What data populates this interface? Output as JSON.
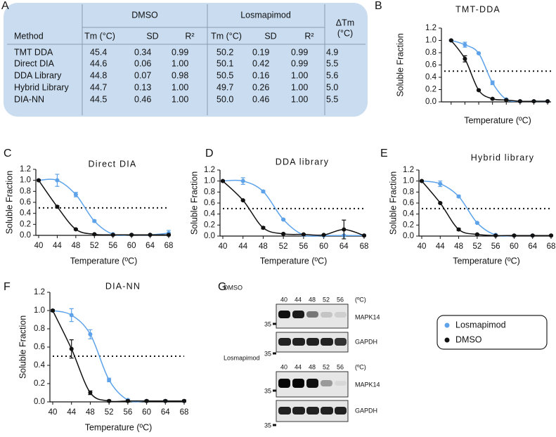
{
  "panel_labels": [
    "A",
    "B",
    "C",
    "D",
    "E",
    "F",
    "G"
  ],
  "table": {
    "method_header": "Method",
    "groups": [
      "DMSO",
      "Losmapimod"
    ],
    "delta_header": "ΔTm",
    "delta_unit": "(°C)",
    "subheaders": [
      "Tm (°C)",
      "SD",
      "R²",
      "Tm (°C)",
      "SD",
      "R²"
    ],
    "rows": [
      [
        "TMT DDA",
        "45.4",
        "0.34",
        "0.99",
        "50.2",
        "0.19",
        "0.99",
        "4.9"
      ],
      [
        "Direct DIA",
        "44.6",
        "0.06",
        "1.00",
        "50.1",
        "0.42",
        "0.99",
        "5.5"
      ],
      [
        "DDA Library",
        "44.8",
        "0.07",
        "0.98",
        "50.5",
        "0.16",
        "1.00",
        "5.6"
      ],
      [
        "Hybrid Library",
        "44.7",
        "0.13",
        "1.00",
        "49.7",
        "0.26",
        "1.00",
        "5.0"
      ],
      [
        "DIA-NN",
        "44.5",
        "0.46",
        "1.00",
        "50.0",
        "0.46",
        "1.00",
        "5.5"
      ]
    ]
  },
  "chart_data": [
    {
      "type": "line",
      "title": "TMT-DDA",
      "xlabel": "Temperature (ºC)",
      "ylabel": "Soluble Fraction",
      "x": [
        40,
        44,
        48,
        52,
        56,
        60,
        64,
        68
      ],
      "xlim": [
        38,
        69
      ],
      "ylim": [
        0,
        1.2
      ],
      "yticks": [
        {
          "value": 0,
          "label": "0.0"
        },
        0.2,
        0.4,
        0.6,
        0.8,
        {
          "value": 1,
          "label": "1.0"
        },
        1.2
      ],
      "hline": 0.5,
      "series": [
        {
          "name": "Losmapimod",
          "color": "#5ea3ea",
          "values": [
            1.0,
            0.93,
            0.79,
            0.31,
            0.04,
            0.01,
            0.01,
            0.01
          ],
          "errors": [
            0.01,
            0.04,
            0.01,
            0.03,
            0.01,
            0.01,
            0.01,
            0.01
          ]
        },
        {
          "name": "DMSO",
          "color": "#111111",
          "values": [
            1.0,
            0.7,
            0.19,
            0.05,
            0.03,
            0.01,
            0.01,
            0.01
          ],
          "errors": [
            0.01,
            0.05,
            0.01,
            0.01,
            0.01,
            0.01,
            0.01,
            0.01
          ]
        }
      ]
    },
    {
      "type": "line",
      "title": "Direct DIA",
      "xlabel": "Temperature (ºC)",
      "ylabel": "Soluble Fraction",
      "x": [
        40,
        44,
        48,
        52,
        56,
        60,
        64,
        68
      ],
      "xlim": [
        40,
        68
      ],
      "xticks": [
        40,
        44,
        48,
        52,
        56,
        60,
        64,
        68
      ],
      "ylim": [
        0,
        1.2
      ],
      "yticks": [
        {
          "value": 0,
          "label": "0.0"
        },
        0.2,
        0.4,
        0.6,
        0.8,
        {
          "value": 1,
          "label": "1.0"
        },
        1.2
      ],
      "hline": 0.5,
      "series": [
        {
          "name": "Losmapimod",
          "color": "#5ea3ea",
          "values": [
            1.0,
            1.0,
            0.74,
            0.26,
            0.02,
            0.01,
            0.01,
            0.04
          ],
          "errors": [
            0.01,
            0.11,
            0.04,
            0.02,
            0.01,
            0.01,
            0.01,
            0.05
          ]
        },
        {
          "name": "DMSO",
          "color": "#111111",
          "values": [
            1.0,
            0.52,
            0.11,
            0.02,
            0.01,
            0.01,
            0.01,
            0.01
          ],
          "errors": [
            0.01,
            0.02,
            0.01,
            0.01,
            0.01,
            0.01,
            0.01,
            0.01
          ]
        }
      ]
    },
    {
      "type": "line",
      "title": "DDA library",
      "xlabel": "Temperature (ºC)",
      "ylabel": "Soluble Fraction",
      "x": [
        40,
        44,
        48,
        52,
        56,
        60,
        64,
        68
      ],
      "xlim": [
        40,
        68
      ],
      "xticks": [
        40,
        44,
        48,
        52,
        56,
        60,
        64,
        68
      ],
      "ylim": [
        0,
        1.2
      ],
      "yticks": [
        {
          "value": 0,
          "label": "0.0"
        },
        0.2,
        0.4,
        0.6,
        0.8,
        {
          "value": 1,
          "label": "1.0"
        },
        1.2
      ],
      "hline": 0.5,
      "series": [
        {
          "name": "Losmapimod",
          "color": "#5ea3ea",
          "values": [
            1.0,
            1.0,
            0.81,
            0.3,
            0.02,
            0.01,
            0.01,
            0.01
          ],
          "errors": [
            0.01,
            0.06,
            0.02,
            0.01,
            0.01,
            0.01,
            0.01,
            0.01
          ]
        },
        {
          "name": "DMSO",
          "color": "#111111",
          "values": [
            1.0,
            0.65,
            0.15,
            0.04,
            0.03,
            0.02,
            0.12,
            0.01
          ],
          "errors": [
            0.01,
            0.01,
            0.02,
            0.01,
            0.01,
            0.01,
            0.17,
            0.01
          ]
        }
      ]
    },
    {
      "type": "line",
      "title": "Hybrid library",
      "xlabel": "Temperature (ºC)",
      "ylabel": "Soluble Fraction",
      "x": [
        40,
        44,
        48,
        52,
        56,
        60,
        64,
        68
      ],
      "xlim": [
        40,
        68
      ],
      "xticks": [
        40,
        44,
        48,
        52,
        56,
        60,
        64,
        68
      ],
      "ylim": [
        0,
        1.2
      ],
      "yticks": [
        {
          "value": 0,
          "label": "0.0"
        },
        0.2,
        0.4,
        0.6,
        0.8,
        {
          "value": 1,
          "label": "1.0"
        },
        1.2
      ],
      "hline": 0.5,
      "series": [
        {
          "name": "Losmapimod",
          "color": "#5ea3ea",
          "values": [
            1.0,
            0.95,
            0.72,
            0.24,
            0.02,
            0.01,
            0.01,
            0.01
          ],
          "errors": [
            0.01,
            0.05,
            0.02,
            0.01,
            0.01,
            0.01,
            0.01,
            0.01
          ]
        },
        {
          "name": "DMSO",
          "color": "#111111",
          "values": [
            1.0,
            0.6,
            0.12,
            0.03,
            0.01,
            0.01,
            0.01,
            0.01
          ],
          "errors": [
            0.01,
            0.01,
            0.02,
            0.01,
            0.01,
            0.01,
            0.01,
            0.01
          ]
        }
      ]
    },
    {
      "type": "line",
      "title": "DIA-NN",
      "xlabel": "Temperature (ºC)",
      "ylabel": "Soluble Fraction",
      "x": [
        40,
        44,
        48,
        52,
        56,
        60,
        64,
        68
      ],
      "xlim": [
        40,
        68
      ],
      "xticks": [
        40,
        44,
        48,
        52,
        56,
        60,
        64,
        68
      ],
      "ylim": [
        0,
        1.2
      ],
      "yticks": [
        {
          "value": 0,
          "label": "0.0"
        },
        0.2,
        0.4,
        0.6,
        0.8,
        {
          "value": 1,
          "label": "1.0"
        },
        1.2
      ],
      "hline": 0.5,
      "series": [
        {
          "name": "Losmapimod",
          "color": "#5ea3ea",
          "values": [
            1.0,
            0.95,
            0.74,
            0.24,
            0.02,
            0.01,
            0.01,
            0.01
          ],
          "errors": [
            0.01,
            0.07,
            0.05,
            0.02,
            0.01,
            0.01,
            0.01,
            0.01
          ]
        },
        {
          "name": "DMSO",
          "color": "#111111",
          "values": [
            1.0,
            0.58,
            0.1,
            0.01,
            0.01,
            0.01,
            0.01,
            0.01
          ],
          "errors": [
            0.01,
            0.1,
            0.02,
            0.01,
            0.01,
            0.01,
            0.01,
            0.01
          ]
        }
      ]
    }
  ],
  "blot": {
    "sections": [
      {
        "condition": "DMSO",
        "temps": [
          "40",
          "44",
          "48",
          "52",
          "56"
        ],
        "unit": "(ºC)",
        "rows": [
          {
            "label": "MAPK14",
            "marker": "35"
          },
          {
            "label": "GAPDH",
            "marker": "35"
          }
        ]
      },
      {
        "condition": "Losmapimod",
        "temps": [
          "40",
          "44",
          "48",
          "52",
          "56"
        ],
        "unit": "(ºC)",
        "rows": [
          {
            "label": "MAPK14",
            "marker": "35"
          },
          {
            "label": "GAPDH",
            "marker": "35"
          }
        ]
      }
    ]
  }
}
